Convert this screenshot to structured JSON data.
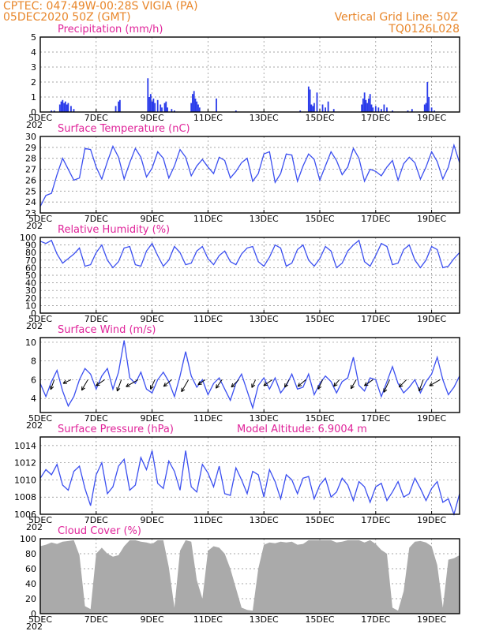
{
  "header": {
    "line1": "CPTEC:   047:49W-00:28S   VIGIA (PA)",
    "line2": "05DEC2020 50Z (GMT)",
    "right1": "Vertical Grid Line: 50Z",
    "right2": "TQ0126L028"
  },
  "x_axis": {
    "labels": [
      "5DEC",
      "7DEC",
      "9DEC",
      "11DEC",
      "13DEC",
      "15DEC",
      "17DEC",
      "19DEC"
    ],
    "label_days": [
      0,
      2,
      4,
      6,
      8,
      10,
      12,
      14
    ],
    "stub": "202"
  },
  "colors": {
    "line": "#3b4ff0",
    "bar": "#2a3bea",
    "cloud": "#aaaaaa",
    "header": "#e8862a",
    "title": "#e0249a"
  },
  "chart_data": [
    {
      "type": "bar",
      "title": "Precipitation  (mm/h)",
      "ylim": [
        0,
        5
      ],
      "yticks": [
        0,
        1,
        2,
        3,
        4,
        5
      ],
      "x": [
        0.4,
        0.5,
        0.7,
        0.75,
        0.8,
        0.85,
        0.9,
        0.95,
        1.0,
        1.1,
        1.2,
        2.7,
        2.8,
        2.85,
        3.85,
        3.9,
        3.95,
        4.0,
        4.05,
        4.1,
        4.2,
        4.3,
        4.35,
        4.45,
        4.5,
        4.55,
        4.7,
        4.8,
        5.4,
        5.45,
        5.5,
        5.55,
        5.6,
        5.65,
        5.7,
        6.3,
        7.0,
        9.3,
        9.6,
        9.65,
        9.7,
        9.75,
        9.8,
        9.9,
        10.1,
        10.2,
        10.3,
        10.5,
        11.5,
        11.55,
        11.6,
        11.65,
        11.7,
        11.75,
        11.8,
        11.85,
        11.9,
        12.0,
        12.1,
        12.2,
        12.3,
        12.4,
        12.6,
        13.15,
        13.3,
        13.75,
        13.8,
        13.85,
        13.9,
        14.0,
        14.1
      ],
      "values": [
        0.1,
        0.1,
        0.5,
        0.7,
        0.8,
        0.6,
        0.7,
        0.5,
        0.6,
        0.4,
        0.2,
        0.4,
        0.7,
        0.8,
        2.25,
        1.0,
        1.2,
        0.7,
        0.9,
        0.6,
        0.8,
        0.5,
        0.3,
        0.6,
        0.7,
        0.3,
        0.2,
        0.1,
        0.6,
        1.2,
        1.4,
        0.9,
        0.7,
        0.5,
        0.3,
        0.9,
        0.1,
        0.1,
        1.7,
        1.5,
        0.5,
        0.4,
        0.6,
        1.3,
        0.5,
        0.3,
        0.7,
        0.2,
        0.5,
        0.9,
        1.3,
        0.8,
        0.6,
        0.9,
        1.2,
        0.5,
        0.3,
        0.4,
        0.3,
        0.2,
        0.5,
        0.3,
        0.1,
        0.1,
        0.2,
        0.5,
        0.6,
        2.0,
        1.0,
        0.3,
        0.1
      ]
    },
    {
      "type": "line",
      "title": "Surface Temperature (nC)",
      "ylim": [
        23,
        30
      ],
      "yticks": [
        23,
        24,
        25,
        26,
        27,
        28,
        29,
        30
      ],
      "x": [
        0,
        0.2,
        0.4,
        0.6,
        0.8,
        1.0,
        1.2,
        1.4,
        1.6,
        1.8,
        2.0,
        2.2,
        2.4,
        2.6,
        2.8,
        3.0,
        3.2,
        3.4,
        3.6,
        3.8,
        4.0,
        4.2,
        4.4,
        4.6,
        4.8,
        5.0,
        5.2,
        5.4,
        5.6,
        5.8,
        6.0,
        6.2,
        6.4,
        6.6,
        6.8,
        7.0,
        7.2,
        7.4,
        7.6,
        7.8,
        8.0,
        8.2,
        8.4,
        8.6,
        8.8,
        9.0,
        9.2,
        9.4,
        9.6,
        9.8,
        10.0,
        10.2,
        10.4,
        10.6,
        10.8,
        11.0,
        11.2,
        11.4,
        11.6,
        11.8,
        12.0,
        12.2,
        12.4,
        12.6,
        12.8,
        13.0,
        13.2,
        13.4,
        13.6,
        13.8,
        14.0,
        14.2,
        14.4,
        14.6,
        14.8,
        15.0
      ],
      "values": [
        23.6,
        24.6,
        24.8,
        26.5,
        28.0,
        27.0,
        26.0,
        26.2,
        28.9,
        28.8,
        27.2,
        26.1,
        27.7,
        29.1,
        28.1,
        26.1,
        27.6,
        28.9,
        28.1,
        26.3,
        27.1,
        28.6,
        28.0,
        26.2,
        27.3,
        28.8,
        28.1,
        26.4,
        27.3,
        27.9,
        27.2,
        26.6,
        28.1,
        27.8,
        26.2,
        26.8,
        27.6,
        28.0,
        25.9,
        26.6,
        28.4,
        28.6,
        25.8,
        26.6,
        28.4,
        28.3,
        25.9,
        27.3,
        28.4,
        27.9,
        26.0,
        27.3,
        28.6,
        27.8,
        26.5,
        27.2,
        28.9,
        28.0,
        25.9,
        27.0,
        26.8,
        26.4,
        27.2,
        27.8,
        26.0,
        27.5,
        28.1,
        27.6,
        26.1,
        27.2,
        28.6,
        27.7,
        26.1,
        27.2,
        29.2,
        27.6
      ],
      "series": []
    },
    {
      "type": "line",
      "title": "Relative Humidity (%)",
      "ylim": [
        0,
        100
      ],
      "yticks": [
        0,
        10,
        20,
        30,
        40,
        50,
        60,
        70,
        80,
        90,
        100
      ],
      "x": [
        0,
        0.2,
        0.4,
        0.6,
        0.8,
        1.0,
        1.2,
        1.4,
        1.6,
        1.8,
        2.0,
        2.2,
        2.4,
        2.6,
        2.8,
        3.0,
        3.2,
        3.4,
        3.6,
        3.8,
        4.0,
        4.2,
        4.4,
        4.6,
        4.8,
        5.0,
        5.2,
        5.4,
        5.6,
        5.8,
        6.0,
        6.2,
        6.4,
        6.6,
        6.8,
        7.0,
        7.2,
        7.4,
        7.6,
        7.8,
        8.0,
        8.2,
        8.4,
        8.6,
        8.8,
        9.0,
        9.2,
        9.4,
        9.6,
        9.8,
        10.0,
        10.2,
        10.4,
        10.6,
        10.8,
        11.0,
        11.2,
        11.4,
        11.6,
        11.8,
        12.0,
        12.2,
        12.4,
        12.6,
        12.8,
        13.0,
        13.2,
        13.4,
        13.6,
        13.8,
        14.0,
        14.2,
        14.4,
        14.6,
        14.8,
        15.0
      ],
      "values": [
        95,
        92,
        96,
        78,
        66,
        72,
        78,
        86,
        62,
        64,
        80,
        90,
        70,
        60,
        68,
        86,
        88,
        64,
        62,
        82,
        92,
        76,
        62,
        70,
        88,
        80,
        64,
        66,
        82,
        88,
        72,
        64,
        76,
        82,
        68,
        64,
        78,
        86,
        88,
        68,
        62,
        74,
        90,
        86,
        62,
        66,
        84,
        90,
        70,
        62,
        72,
        88,
        82,
        60,
        66,
        82,
        90,
        96,
        68,
        62,
        76,
        92,
        88,
        64,
        66,
        84,
        90,
        70,
        60,
        70,
        88,
        84,
        60,
        62,
        72,
        80
      ]
    },
    {
      "type": "line",
      "title": "Surface Wind (m/s)",
      "ylim": [
        2.5,
        10.5
      ],
      "yticks": [
        4,
        6,
        8,
        10
      ],
      "x": [
        0,
        0.2,
        0.4,
        0.6,
        0.8,
        1.0,
        1.2,
        1.4,
        1.6,
        1.8,
        2.0,
        2.2,
        2.4,
        2.6,
        2.8,
        3.0,
        3.2,
        3.4,
        3.6,
        3.8,
        4.0,
        4.2,
        4.4,
        4.6,
        4.8,
        5.0,
        5.2,
        5.4,
        5.6,
        5.8,
        6.0,
        6.2,
        6.4,
        6.6,
        6.8,
        7.0,
        7.2,
        7.4,
        7.6,
        7.8,
        8.0,
        8.2,
        8.4,
        8.6,
        8.8,
        9.0,
        9.2,
        9.4,
        9.6,
        9.8,
        10.0,
        10.2,
        10.4,
        10.6,
        10.8,
        11.0,
        11.2,
        11.4,
        11.6,
        11.8,
        12.0,
        12.2,
        12.4,
        12.6,
        12.8,
        13.0,
        13.2,
        13.4,
        13.6,
        13.8,
        14.0,
        14.2,
        14.4,
        14.6,
        14.8,
        15.0
      ],
      "values": [
        5.6,
        4.2,
        5.8,
        7.0,
        4.8,
        3.2,
        4.2,
        6.0,
        7.2,
        6.6,
        5.0,
        6.4,
        7.2,
        5.0,
        6.8,
        10.2,
        6.2,
        5.6,
        6.8,
        5.0,
        4.6,
        6.0,
        6.8,
        5.8,
        4.2,
        6.4,
        9.0,
        6.4,
        5.2,
        6.0,
        4.4,
        5.6,
        6.2,
        5.0,
        3.8,
        5.6,
        6.6,
        4.8,
        3.0,
        5.4,
        6.2,
        5.0,
        6.2,
        4.6,
        5.4,
        6.6,
        5.0,
        5.2,
        6.6,
        4.4,
        5.6,
        6.4,
        5.8,
        4.6,
        5.8,
        6.2,
        8.4,
        5.4,
        4.8,
        6.2,
        6.0,
        4.2,
        5.8,
        7.4,
        5.6,
        4.6,
        5.2,
        6.0,
        4.6,
        5.8,
        6.6,
        8.4,
        6.0,
        4.4,
        5.2,
        6.4
      ],
      "arrows": {
        "level": 6.0,
        "x": [
          0.5,
          1.1,
          1.7,
          2.3,
          2.9,
          3.5,
          4.1,
          4.7,
          5.3,
          5.9,
          6.5,
          7.1,
          7.7,
          8.3,
          8.9,
          9.5,
          10.1,
          10.7,
          11.3,
          11.9,
          12.5,
          13.1,
          13.7,
          14.3
        ],
        "direction_deg": [
          250,
          205,
          240,
          215,
          250,
          210,
          245,
          220,
          240,
          215,
          235,
          225,
          245,
          215,
          240,
          220,
          245,
          230,
          240,
          215,
          245,
          225,
          250,
          210
        ],
        "speed": [
          6,
          5,
          7,
          6,
          7,
          8,
          6,
          6,
          8,
          5,
          6,
          6,
          5,
          6,
          5,
          6,
          6,
          5,
          6,
          6,
          8,
          6,
          7,
          7
        ]
      }
    },
    {
      "type": "line",
      "title": "Surface Pressure (hPa)",
      "annotation": "Model Altitude: 6.9004 m",
      "ylim": [
        1006,
        1015
      ],
      "yticks": [
        1006,
        1008,
        1010,
        1012,
        1014
      ],
      "x": [
        0,
        0.2,
        0.4,
        0.6,
        0.8,
        1.0,
        1.2,
        1.4,
        1.6,
        1.8,
        2.0,
        2.2,
        2.4,
        2.6,
        2.8,
        3.0,
        3.2,
        3.4,
        3.6,
        3.8,
        4.0,
        4.2,
        4.4,
        4.6,
        4.8,
        5.0,
        5.2,
        5.4,
        5.6,
        5.8,
        6.0,
        6.2,
        6.4,
        6.6,
        6.8,
        7.0,
        7.2,
        7.4,
        7.6,
        7.8,
        8.0,
        8.2,
        8.4,
        8.6,
        8.8,
        9.0,
        9.2,
        9.4,
        9.6,
        9.8,
        10.0,
        10.2,
        10.4,
        10.6,
        10.8,
        11.0,
        11.2,
        11.4,
        11.6,
        11.8,
        12.0,
        12.2,
        12.4,
        12.6,
        12.8,
        13.0,
        13.2,
        13.4,
        13.6,
        13.8,
        14.0,
        14.2,
        14.4,
        14.6,
        14.8,
        15.0
      ],
      "values": [
        1010.2,
        1011.2,
        1010.6,
        1011.8,
        1009.4,
        1008.8,
        1011.0,
        1011.6,
        1009.0,
        1007.0,
        1010.6,
        1012.0,
        1008.4,
        1009.2,
        1011.6,
        1012.4,
        1008.8,
        1009.4,
        1012.6,
        1011.2,
        1013.4,
        1009.6,
        1009.0,
        1012.2,
        1011.0,
        1008.8,
        1013.4,
        1009.2,
        1008.6,
        1011.8,
        1010.8,
        1009.2,
        1011.6,
        1008.4,
        1008.2,
        1011.4,
        1010.0,
        1008.4,
        1011.0,
        1010.6,
        1008.0,
        1011.2,
        1009.8,
        1007.8,
        1010.6,
        1010.0,
        1008.4,
        1010.2,
        1010.4,
        1007.8,
        1009.4,
        1010.2,
        1008.0,
        1008.6,
        1010.2,
        1009.4,
        1007.6,
        1009.8,
        1009.2,
        1007.4,
        1009.2,
        1009.6,
        1007.6,
        1008.6,
        1009.8,
        1008.0,
        1008.4,
        1010.2,
        1009.0,
        1007.6,
        1009.0,
        1009.8,
        1007.4,
        1007.8,
        1006.0,
        1008.4
      ]
    },
    {
      "type": "area",
      "title": "Cloud Cover (%)",
      "ylim": [
        0,
        100
      ],
      "yticks": [
        0,
        20,
        40,
        60,
        80,
        100
      ],
      "x": [
        0,
        0.2,
        0.4,
        0.6,
        0.8,
        1.0,
        1.2,
        1.4,
        1.6,
        1.8,
        2.0,
        2.2,
        2.4,
        2.6,
        2.8,
        3.0,
        3.2,
        3.4,
        3.6,
        3.8,
        4.0,
        4.2,
        4.4,
        4.6,
        4.8,
        5.0,
        5.2,
        5.4,
        5.6,
        5.8,
        6.0,
        6.2,
        6.4,
        6.6,
        6.8,
        7.0,
        7.2,
        7.4,
        7.6,
        7.8,
        8.0,
        8.2,
        8.4,
        8.6,
        8.8,
        9.0,
        9.2,
        9.4,
        9.6,
        9.8,
        10.0,
        10.2,
        10.4,
        10.6,
        10.8,
        11.0,
        11.2,
        11.4,
        11.6,
        11.8,
        12.0,
        12.2,
        12.4,
        12.6,
        12.8,
        13.0,
        13.2,
        13.4,
        13.6,
        13.8,
        14.0,
        14.2,
        14.4,
        14.6,
        14.8,
        15.0
      ],
      "values": [
        90,
        92,
        95,
        93,
        96,
        97,
        98,
        78,
        10,
        6,
        80,
        88,
        80,
        76,
        78,
        90,
        98,
        98,
        96,
        95,
        93,
        98,
        98,
        62,
        8,
        84,
        98,
        96,
        45,
        20,
        84,
        90,
        88,
        80,
        60,
        34,
        8,
        5,
        4,
        60,
        92,
        95,
        94,
        96,
        95,
        96,
        92,
        93,
        98,
        98,
        98,
        98,
        98,
        95,
        96,
        98,
        98,
        98,
        95,
        98,
        93,
        85,
        80,
        8,
        4,
        30,
        88,
        96,
        97,
        95,
        90,
        65,
        8,
        72,
        74,
        78
      ]
    }
  ]
}
